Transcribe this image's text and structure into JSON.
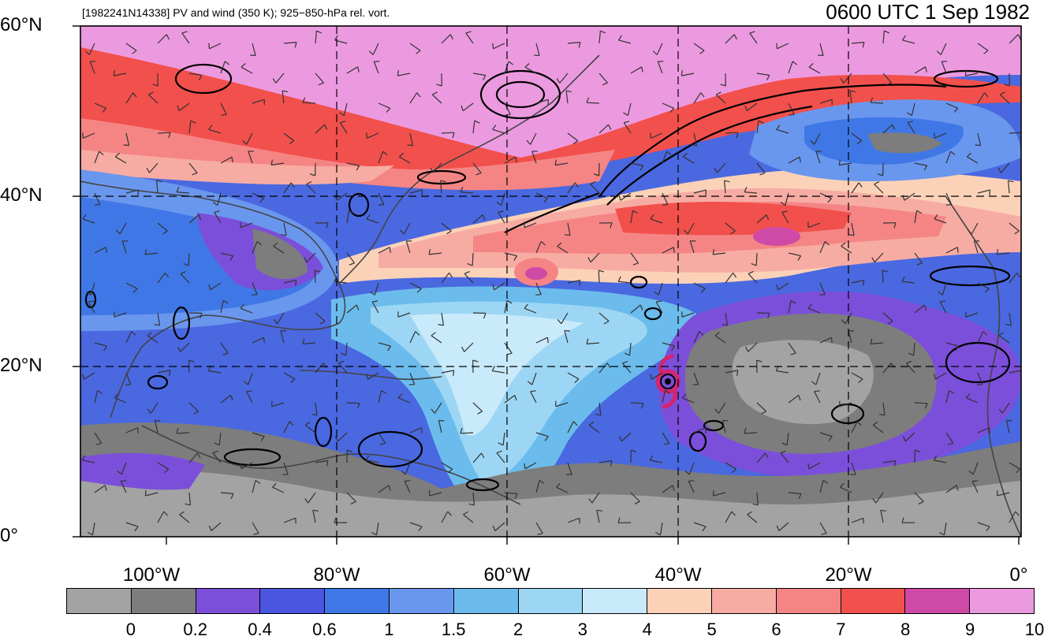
{
  "header": {
    "subtitle": "[1982241N14338] PV and wind (350 K); 925−850-hPa rel. vort.",
    "valid_time": "0600 UTC 1 Sep 1982"
  },
  "map": {
    "lat_labels": [
      "60°N",
      "40°N",
      "20°N",
      "0°"
    ],
    "lon_labels": [
      "100°W",
      "80°W",
      "60°W",
      "40°W",
      "20°W",
      "0°"
    ],
    "storm_marker": "hurricane-symbol",
    "storm_color": "#d6246e"
  },
  "colorbar": {
    "colors": [
      "#a3a3a3",
      "#7d7d7d",
      "#7b4fd9",
      "#4a55e0",
      "#3f78e6",
      "#6a97ee",
      "#6bbcec",
      "#9cd6f4",
      "#c9eafa",
      "#fbd2b8",
      "#f7aca3",
      "#f58585",
      "#f2504c",
      "#cf49a6",
      "#ec9ae0"
    ],
    "labels": [
      "0",
      "0.2",
      "0.4",
      "0.6",
      "1",
      "1.5",
      "2",
      "3",
      "4",
      "5",
      "6",
      "7",
      "8",
      "9",
      "10"
    ]
  }
}
